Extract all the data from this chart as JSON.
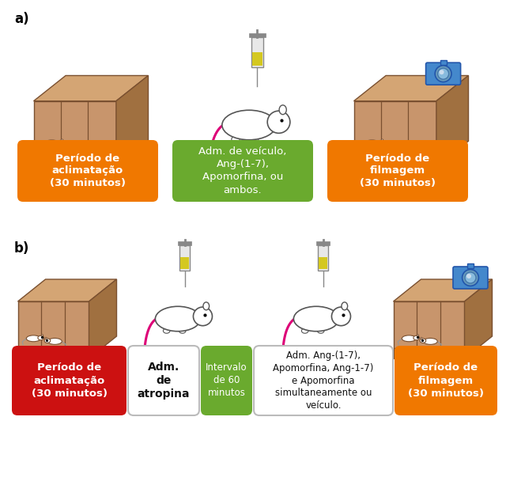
{
  "background_color": "#ffffff",
  "label_a": "a)",
  "label_b": "b)",
  "section_a": {
    "boxes": [
      {
        "text": "Período de\naclimatação\n(30 minutos)",
        "color": "#f07800",
        "text_color": "#ffffff",
        "bold": true,
        "fontsize": 9.5
      },
      {
        "text": "Adm. de veículo,\nAng-(1-7),\nApomorfina, ou\nambos.",
        "color": "#6aaa2e",
        "text_color": "#ffffff",
        "bold": false,
        "fontsize": 9.5
      },
      {
        "text": "Período de\nfilmagem\n(30 minutos)",
        "color": "#f07800",
        "text_color": "#ffffff",
        "bold": true,
        "fontsize": 9.5
      }
    ]
  },
  "section_b": {
    "boxes": [
      {
        "text": "Período de\naclimatação\n(30 minutos)",
        "color": "#cc1111",
        "text_color": "#ffffff",
        "bold": true,
        "fontsize": 9.5
      },
      {
        "text": "Adm.\nde\natropina",
        "color": "#ffffff",
        "text_color": "#111111",
        "bold": true,
        "border_color": "#bbbbbb",
        "fontsize": 10
      },
      {
        "text": "Intervalo\nde 60\nminutos",
        "color": "#6aaa2e",
        "text_color": "#ffffff",
        "bold": false,
        "fontsize": 8.5
      },
      {
        "text": "Adm. Ang-(1-7),\nApomorfina, Ang-1-7)\ne Apomorfina\nsimultaneamente ou\nveículo.",
        "color": "#ffffff",
        "text_color": "#111111",
        "bold": false,
        "border_color": "#bbbbbb",
        "fontsize": 8.5
      },
      {
        "text": "Período de\nfilmagem\n(30 minutos)",
        "color": "#f07800",
        "text_color": "#ffffff",
        "bold": true,
        "fontsize": 9.5
      }
    ]
  },
  "cage_face_color": "#c8956c",
  "cage_top_color": "#d4a574",
  "cage_side_color": "#a07040",
  "cage_line_color": "#7a5030"
}
